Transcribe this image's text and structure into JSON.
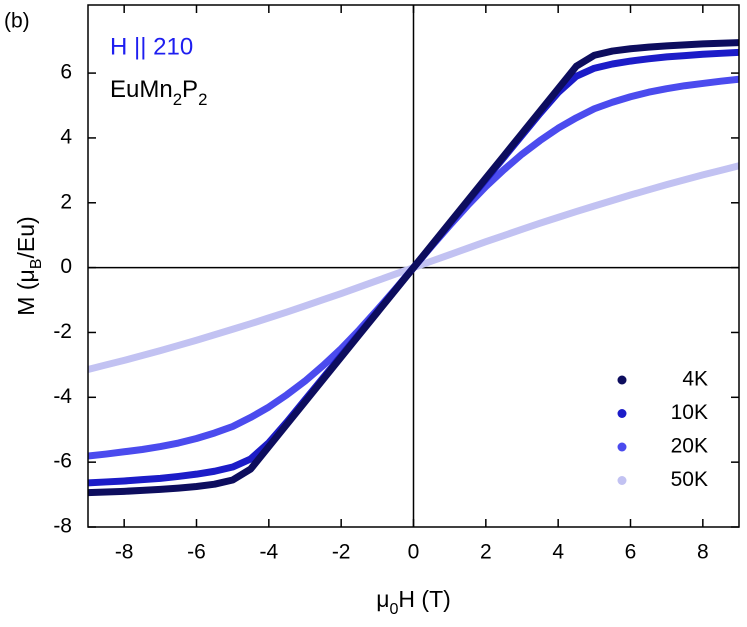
{
  "chart_data": {
    "type": "line",
    "panel_label": "(b)",
    "annotations": [
      {
        "text": "H || 210",
        "color": "#1e1ef0"
      }
    ],
    "compound_parts": [
      "EuMn",
      "2",
      "P",
      "2"
    ],
    "xlabel_parts": [
      "μ",
      "0",
      "H (T)"
    ],
    "ylabel_parts": [
      "M (μ",
      "B",
      "/Eu)"
    ],
    "x": [
      -9,
      -8.5,
      -8,
      -7.5,
      -7,
      -6.5,
      -6,
      -5.5,
      -5,
      -4.5,
      -4,
      -3.5,
      -3,
      -2.5,
      -2,
      -1.5,
      -1,
      -0.5,
      0,
      0.5,
      1,
      1.5,
      2,
      2.5,
      3,
      3.5,
      4,
      4.5,
      5,
      5.5,
      6,
      6.5,
      7,
      7.5,
      8,
      8.5,
      9
    ],
    "series": [
      {
        "name": "4K",
        "color": "#0d0d5e",
        "values": [
          -6.94,
          -6.92,
          -6.9,
          -6.87,
          -6.84,
          -6.8,
          -6.75,
          -6.68,
          -6.55,
          -6.21,
          -5.52,
          -4.83,
          -4.14,
          -3.45,
          -2.76,
          -2.07,
          -1.38,
          -0.69,
          0,
          0.69,
          1.38,
          2.07,
          2.76,
          3.45,
          4.14,
          4.83,
          5.52,
          6.21,
          6.55,
          6.68,
          6.75,
          6.8,
          6.84,
          6.87,
          6.9,
          6.92,
          6.94
        ]
      },
      {
        "name": "10K",
        "color": "#1c1cc8",
        "values": [
          -6.64,
          -6.61,
          -6.58,
          -6.54,
          -6.5,
          -6.44,
          -6.37,
          -6.28,
          -6.15,
          -5.9,
          -5.4,
          -4.76,
          -4.08,
          -3.4,
          -2.72,
          -2.04,
          -1.36,
          -0.68,
          0,
          0.68,
          1.36,
          2.04,
          2.72,
          3.4,
          4.08,
          4.76,
          5.4,
          5.9,
          6.15,
          6.28,
          6.37,
          6.44,
          6.5,
          6.54,
          6.58,
          6.61,
          6.64
        ]
      },
      {
        "name": "20K",
        "color": "#4b4bee",
        "values": [
          -5.81,
          -5.75,
          -5.68,
          -5.61,
          -5.52,
          -5.41,
          -5.27,
          -5.1,
          -4.9,
          -4.62,
          -4.3,
          -3.92,
          -3.5,
          -3.02,
          -2.5,
          -1.92,
          -1.3,
          -0.66,
          0,
          0.66,
          1.3,
          1.92,
          2.5,
          3.02,
          3.5,
          3.92,
          4.3,
          4.62,
          4.9,
          5.1,
          5.27,
          5.41,
          5.52,
          5.61,
          5.68,
          5.75,
          5.81
        ]
      },
      {
        "name": "50K",
        "color": "#c2c2f2",
        "values": [
          -3.14,
          -3.0,
          -2.86,
          -2.71,
          -2.56,
          -2.4,
          -2.24,
          -2.07,
          -1.9,
          -1.73,
          -1.55,
          -1.37,
          -1.18,
          -0.99,
          -0.8,
          -0.6,
          -0.4,
          -0.2,
          0,
          0.2,
          0.4,
          0.6,
          0.8,
          0.99,
          1.18,
          1.37,
          1.55,
          1.73,
          1.9,
          2.07,
          2.24,
          2.4,
          2.56,
          2.71,
          2.86,
          3.0,
          3.14
        ]
      }
    ],
    "xlim": [
      -9,
      9
    ],
    "xticks": [
      -8,
      -6,
      -4,
      -2,
      0,
      2,
      4,
      6,
      8
    ],
    "ylim": [
      -8,
      8.1
    ],
    "yticks": [
      -8,
      -6,
      -4,
      -2,
      0,
      2,
      4,
      6
    ],
    "zero_lines": true,
    "legend": "lower right"
  }
}
